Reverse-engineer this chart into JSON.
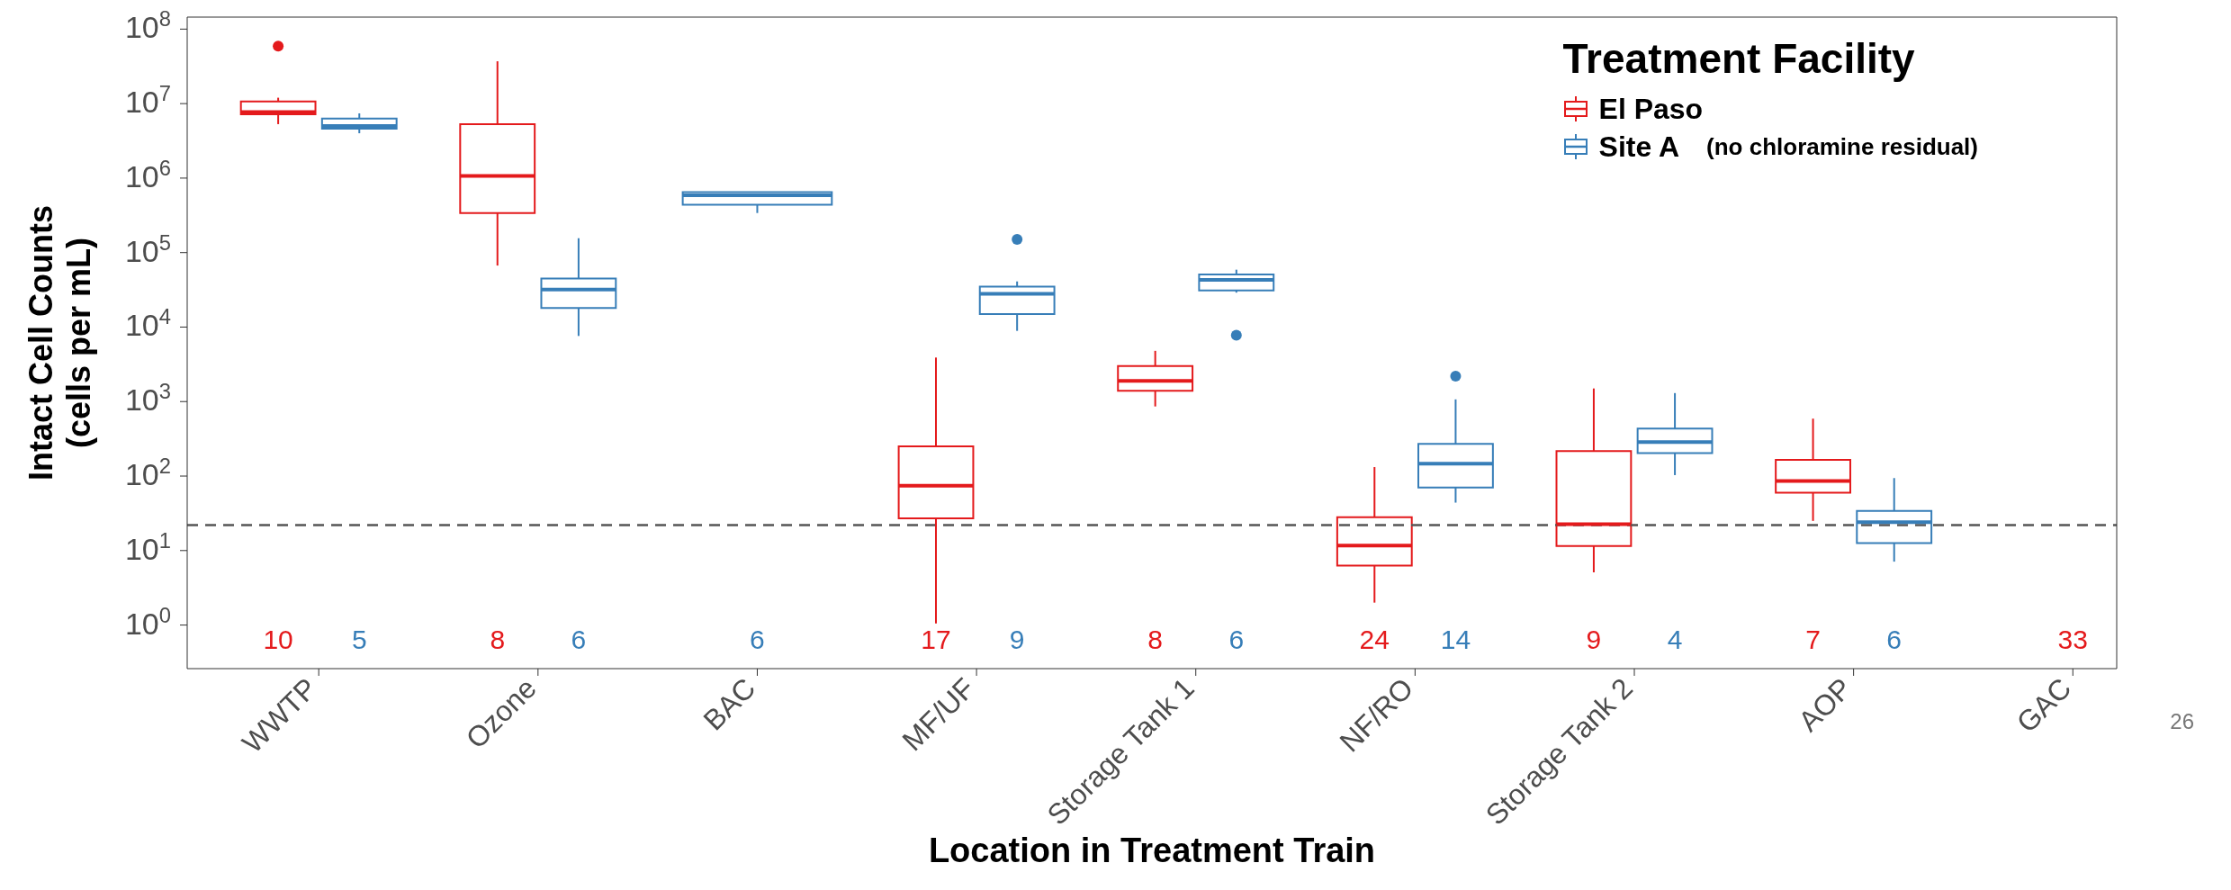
{
  "chart_data": {
    "type": "box",
    "xlabel": "Location in Treatment Train",
    "ylabel": "Intact Cell Counts\n(cells per mL)",
    "legend_title": "Treatment Facility",
    "legend": "top right",
    "log": true,
    "categories": [
      "WWTP",
      "Ozone",
      "BAC",
      "MF/UF",
      "Storage Tank 1",
      "NF/RO",
      "Storage Tank 2",
      "AOP",
      "GAC"
    ],
    "ylim": [
      0.26,
      145000000
    ],
    "yticks": [
      {
        "value": 1,
        "label": "10$^{0}$"
      },
      {
        "value": 10,
        "label": "10$^{1}$"
      },
      {
        "value": 100,
        "label": "10$^{2}$"
      },
      {
        "value": 1000,
        "label": "10$^{3}$"
      },
      {
        "value": 10000,
        "label": "10$^{4}$"
      },
      {
        "value": 100000,
        "label": "10$^{5}$"
      },
      {
        "value": 1000000,
        "label": "10$^{6}$"
      },
      {
        "value": 10000000,
        "label": "10$^{7}$"
      },
      {
        "value": 100000000,
        "label": "10$^{8}$"
      }
    ],
    "ref_lines": [
      {
        "axis": "y",
        "value": 22,
        "color": "#555555",
        "line_style": "dashed"
      }
    ],
    "series": [
      {
        "name": "El Paso",
        "color": "#e41a1c",
        "boxes": [
          {
            "low": 5300000,
            "q1": 7200000,
            "median": 7700000,
            "q3": 10700000,
            "high": 12000000,
            "outliers": [
              59000000
            ]
          },
          {
            "low": 67000,
            "q1": 340000,
            "median": 1070000,
            "q3": 5300000,
            "high": 37000000
          },
          null,
          {
            "low": 1.05,
            "q1": 27,
            "median": 74,
            "q3": 250,
            "high": 3900
          },
          {
            "low": 860,
            "q1": 1400,
            "median": 1900,
            "q3": 3000,
            "high": 4800
          },
          {
            "low": 2.0,
            "q1": 6.3,
            "median": 11.7,
            "q3": 28,
            "high": 132
          },
          {
            "low": 5.1,
            "q1": 11.5,
            "median": 22.6,
            "q3": 217,
            "high": 1500
          },
          {
            "low": 25,
            "q1": 60,
            "median": 86,
            "q3": 165,
            "high": 590
          },
          null
        ]
      },
      {
        "name": "Site A",
        "color": "#377eb8",
        "boxes": [
          {
            "low": 4000000,
            "q1": 4600000,
            "median": 5000000,
            "q3": 6300000,
            "high": 7400000
          },
          {
            "low": 7600,
            "q1": 18000,
            "median": 32000,
            "q3": 45000,
            "high": 156000
          },
          {
            "low": 340000,
            "q1": 440000,
            "median": 590000,
            "q3": 650000,
            "high": 650000
          },
          {
            "low": 8900,
            "q1": 15000,
            "median": 28000,
            "q3": 35000,
            "high": 41000,
            "outliers": [
              150000
            ]
          },
          {
            "low": 29000,
            "q1": 31000,
            "median": 43000,
            "q3": 51000,
            "high": 59000,
            "outliers": [
              7800
            ]
          },
          {
            "low": 44,
            "q1": 70,
            "median": 147,
            "q3": 270,
            "high": 1070,
            "outliers": [
              2200
            ]
          },
          {
            "low": 103,
            "q1": 204,
            "median": 285,
            "q3": 435,
            "high": 1300
          },
          {
            "low": 7.1,
            "q1": 12.6,
            "median": 24,
            "q3": 34,
            "high": 94
          },
          null
        ]
      }
    ],
    "annotations": [
      "10",
      "5",
      "8",
      "6",
      "6",
      "17",
      "9",
      "8",
      "6",
      "24",
      "14",
      "9",
      "4",
      "7",
      "6",
      "33",
      "(no chloramine residual)",
      "26"
    ]
  }
}
